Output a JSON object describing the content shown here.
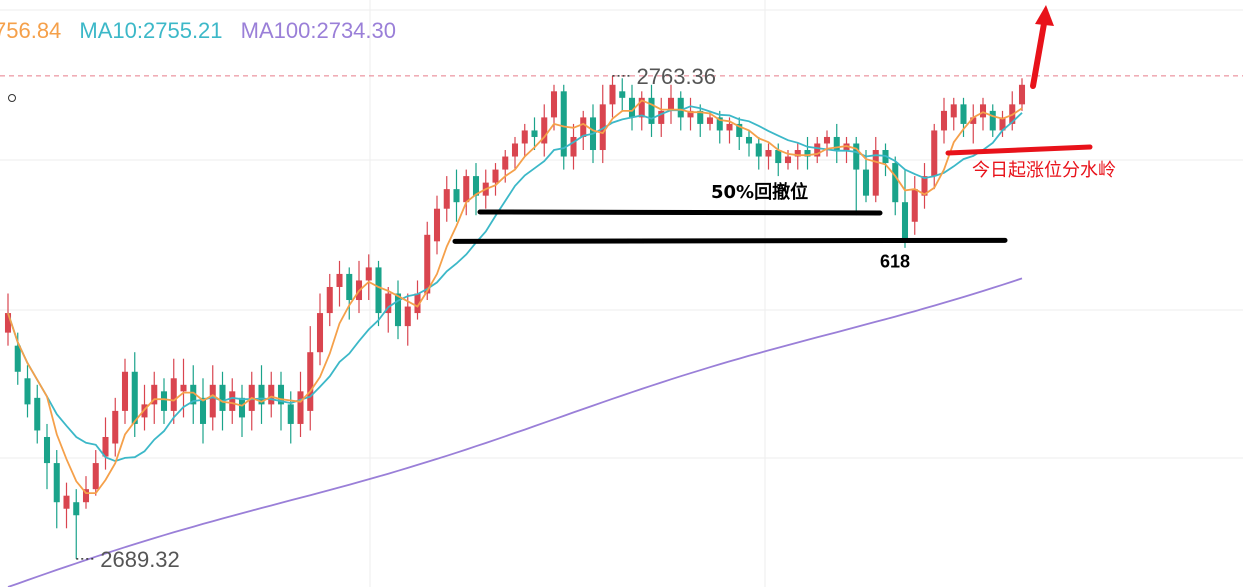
{
  "legend": {
    "ma5_text": "756.84",
    "ma10_text": "MA10:2755.21",
    "ma100_text": "MA100:2734.30",
    "colors": {
      "ma5": "#f5a04a",
      "ma10": "#3cb8c8",
      "ma100": "#9a7fd8"
    }
  },
  "labels": {
    "high_price": "2763.36",
    "low_price": "2689.32",
    "retrace_50": "50%回撤位",
    "fib_618": "618",
    "today_level": "今日起涨位分水岭"
  },
  "colors": {
    "up": "#d9454f",
    "down": "#1aa38a",
    "dashed_line": "#e77c8a",
    "annotation_red": "#e8121a",
    "annotation_black": "#000000",
    "grid": "#eeeeee"
  },
  "chart_data": {
    "type": "candlestick",
    "ylim": [
      2685,
      2775
    ],
    "high": 2763.36,
    "low": 2689.32,
    "annotations": {
      "retrace_50_level": 2742.5,
      "fib_618_level": 2738.0,
      "today_start_level": 2752.0,
      "reference_dashed_level": 2763.36
    },
    "candles": [
      [
        2724,
        2727,
        2722,
        2730
      ],
      [
        2722,
        2718,
        2716,
        2724
      ],
      [
        2717,
        2713,
        2711,
        2719
      ],
      [
        2714,
        2709,
        2707,
        2716
      ],
      [
        2708,
        2704,
        2700,
        2710
      ],
      [
        2704,
        2698,
        2694,
        2706
      ],
      [
        2697,
        2699,
        2694,
        2701
      ],
      [
        2698,
        2696,
        2689.32,
        2700
      ],
      [
        2698,
        2700,
        2697,
        2702
      ],
      [
        2700,
        2704,
        2699,
        2706
      ],
      [
        2705,
        2708,
        2703,
        2711
      ],
      [
        2707,
        2712,
        2705,
        2714
      ],
      [
        2712,
        2718,
        2710,
        2720
      ],
      [
        2718,
        2710,
        2708,
        2721
      ],
      [
        2711,
        2713,
        2709,
        2716
      ],
      [
        2713,
        2716,
        2710,
        2718
      ],
      [
        2715,
        2712,
        2710,
        2717
      ],
      [
        2712,
        2717,
        2710,
        2720
      ],
      [
        2715,
        2716,
        2711,
        2720
      ],
      [
        2716,
        2713,
        2710,
        2719
      ],
      [
        2714,
        2710,
        2707,
        2717
      ],
      [
        2711,
        2716,
        2709,
        2719
      ],
      [
        2716,
        2712,
        2709,
        2718
      ],
      [
        2712,
        2715,
        2710,
        2717
      ],
      [
        2714,
        2711,
        2708,
        2716
      ],
      [
        2712,
        2716,
        2709,
        2718
      ],
      [
        2716,
        2713,
        2710,
        2719
      ],
      [
        2713,
        2716,
        2711,
        2718
      ],
      [
        2716,
        2713,
        2709,
        2718
      ],
      [
        2713,
        2710,
        2707,
        2715
      ],
      [
        2710,
        2715,
        2708,
        2718
      ],
      [
        2712,
        2721,
        2709,
        2725
      ],
      [
        2721,
        2727,
        2719,
        2730
      ],
      [
        2727,
        2731,
        2725,
        2733
      ],
      [
        2731,
        2733,
        2728,
        2735
      ],
      [
        2733,
        2729,
        2726,
        2734
      ],
      [
        2729,
        2732,
        2727,
        2735
      ],
      [
        2732,
        2734,
        2729,
        2736
      ],
      [
        2734,
        2727,
        2725,
        2735
      ],
      [
        2727,
        2730,
        2724,
        2731
      ],
      [
        2730,
        2725,
        2723,
        2732
      ],
      [
        2725,
        2728,
        2722,
        2730
      ],
      [
        2727,
        2730,
        2726,
        2732
      ],
      [
        2730,
        2739,
        2729,
        2741
      ],
      [
        2738,
        2743,
        2736,
        2745
      ],
      [
        2743,
        2746,
        2741,
        2748
      ],
      [
        2746,
        2744,
        2741,
        2749
      ],
      [
        2744,
        2748,
        2742,
        2749
      ],
      [
        2748,
        2745,
        2742,
        2750
      ],
      [
        2745,
        2747,
        2743,
        2749
      ],
      [
        2747,
        2749,
        2745,
        2750
      ],
      [
        2749,
        2751,
        2747,
        2752
      ],
      [
        2751,
        2753,
        2749,
        2754
      ],
      [
        2753,
        2755,
        2751,
        2756
      ],
      [
        2755,
        2754,
        2752,
        2757
      ],
      [
        2753,
        2757,
        2751,
        2759
      ],
      [
        2757,
        2761,
        2755,
        2762
      ],
      [
        2761,
        2751,
        2749,
        2762
      ],
      [
        2751,
        2754,
        2749,
        2756
      ],
      [
        2754,
        2757,
        2752,
        2758
      ],
      [
        2757,
        2752,
        2750,
        2759
      ],
      [
        2752,
        2759,
        2750,
        2762
      ],
      [
        2759,
        2762,
        2757,
        2763.36
      ],
      [
        2761,
        2760,
        2758,
        2763
      ],
      [
        2760,
        2757,
        2755,
        2762
      ],
      [
        2757,
        2760,
        2755,
        2761
      ],
      [
        2760,
        2756,
        2754,
        2762
      ],
      [
        2756,
        2758,
        2754,
        2760
      ],
      [
        2758,
        2760,
        2756,
        2762
      ],
      [
        2760,
        2757,
        2755,
        2761
      ],
      [
        2757,
        2758,
        2755,
        2760
      ],
      [
        2758,
        2756,
        2754,
        2759
      ],
      [
        2756,
        2757,
        2755,
        2758
      ],
      [
        2757,
        2755,
        2753,
        2758
      ],
      [
        2755,
        2756,
        2753,
        2757
      ],
      [
        2756,
        2754,
        2752,
        2757
      ],
      [
        2754,
        2753,
        2751,
        2755
      ],
      [
        2753,
        2751,
        2749,
        2754
      ],
      [
        2751,
        2752,
        2749,
        2753
      ],
      [
        2752,
        2750,
        2748,
        2753
      ],
      [
        2750,
        2751,
        2749,
        2752
      ],
      [
        2751,
        2752,
        2749,
        2753
      ],
      [
        2752,
        2751,
        2749,
        2754
      ],
      [
        2751,
        2753,
        2750,
        2754
      ],
      [
        2753,
        2754,
        2751,
        2755
      ],
      [
        2754,
        2752,
        2750,
        2756
      ],
      [
        2752,
        2753,
        2750,
        2754
      ],
      [
        2753,
        2749,
        2742,
        2754
      ],
      [
        2749,
        2745,
        2744,
        2752
      ],
      [
        2745,
        2752,
        2744,
        2754
      ],
      [
        2752,
        2750,
        2748,
        2753
      ],
      [
        2750,
        2744,
        2742,
        2751
      ],
      [
        2744,
        2738,
        2737,
        2749
      ],
      [
        2741,
        2746,
        2739,
        2748
      ],
      [
        2745,
        2748,
        2743,
        2750
      ],
      [
        2748,
        2755,
        2746,
        2756
      ],
      [
        2755,
        2758,
        2753,
        2760
      ],
      [
        2757,
        2759,
        2755,
        2760
      ],
      [
        2759,
        2756,
        2754,
        2760
      ],
      [
        2756,
        2757,
        2753,
        2759
      ],
      [
        2757,
        2759,
        2755,
        2760
      ],
      [
        2758,
        2755,
        2754,
        2759
      ],
      [
        2755,
        2757,
        2754,
        2758
      ],
      [
        2756,
        2759,
        2755,
        2761
      ],
      [
        2759,
        2762,
        2758,
        2763
      ]
    ]
  }
}
